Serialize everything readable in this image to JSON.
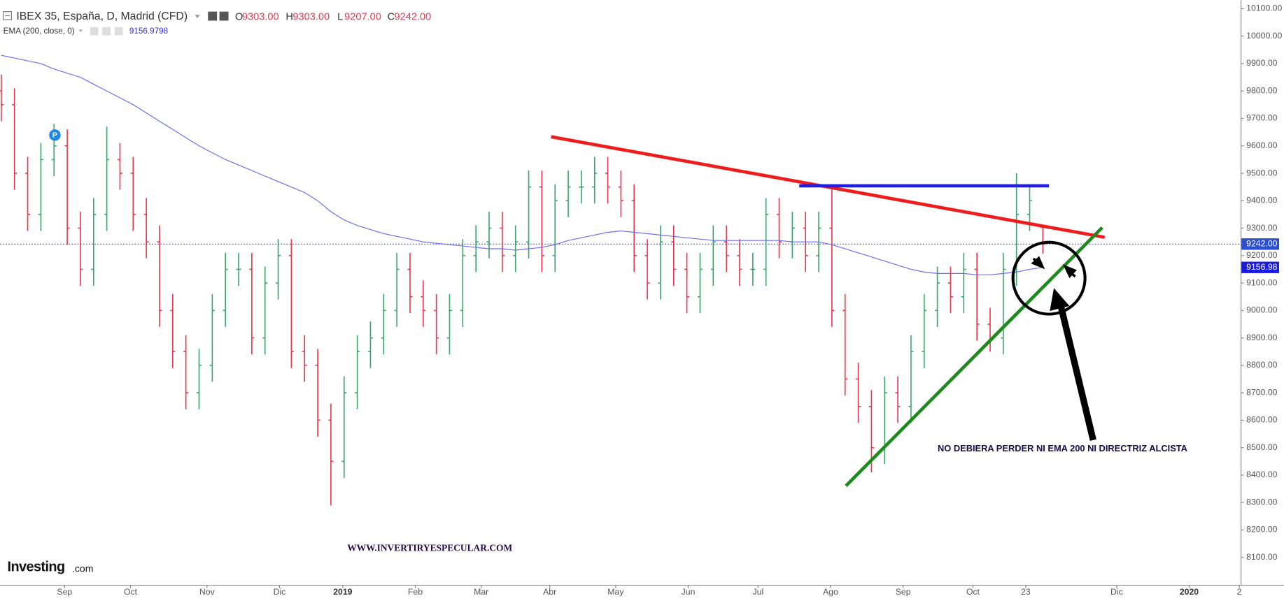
{
  "chart_data": {
    "type": "ohlc",
    "title": "IBEX 35, España, D, Madrid (CFD)",
    "x": [
      0,
      1,
      2,
      3,
      4,
      5,
      6,
      7,
      8,
      9,
      10,
      11,
      12,
      13,
      14,
      15,
      16,
      17,
      18,
      19,
      20,
      21,
      22,
      23,
      24,
      25,
      26,
      27,
      28,
      29,
      30,
      31,
      32,
      33,
      34,
      35,
      36,
      37,
      38,
      39,
      40,
      41,
      42,
      43,
      44,
      45,
      46,
      47,
      48,
      49,
      50,
      51,
      52,
      53,
      54,
      55,
      56,
      57,
      58,
      59,
      60,
      61,
      62,
      63,
      64,
      65,
      66,
      67,
      68,
      69,
      70,
      71,
      72,
      73,
      74,
      75,
      76,
      77,
      78,
      79
    ],
    "series": [
      {
        "name": "IBEX 35",
        "up_color": "#3aa86b",
        "down_color": "#e8384f",
        "open": [
          9800,
          9750,
          9500,
          9350,
          9550,
          9600,
          9300,
          9150,
          9350,
          9550,
          9500,
          9350,
          9250,
          9000,
          8850,
          8700,
          8800,
          9000,
          9150,
          9150,
          8900,
          9100,
          9200,
          8850,
          8800,
          8600,
          8450,
          8700,
          8850,
          8900,
          9000,
          9150,
          9050,
          9000,
          8900,
          9000,
          9200,
          9250,
          9300,
          9200,
          9250,
          9450,
          9200,
          9400,
          9450,
          9450,
          9500,
          9450,
          9400,
          9200,
          9100,
          9250,
          9150,
          9050,
          9150,
          9250,
          9200,
          9150,
          9150,
          9350,
          9250,
          9300,
          9200,
          9300,
          9000,
          8750,
          8650,
          8500,
          8700,
          8650,
          8850,
          9000,
          9100,
          9050,
          9150,
          8950,
          8900,
          9150,
          9350,
          9303
        ],
        "high": [
          9860,
          9810,
          9560,
          9610,
          9680,
          9660,
          9360,
          9410,
          9670,
          9610,
          9560,
          9410,
          9310,
          9060,
          8910,
          8860,
          9060,
          9210,
          9210,
          9210,
          9160,
          9260,
          9260,
          8910,
          8860,
          8660,
          8760,
          8910,
          8960,
          9060,
          9210,
          9210,
          9110,
          9060,
          9060,
          9260,
          9310,
          9360,
          9360,
          9310,
          9510,
          9510,
          9460,
          9510,
          9510,
          9560,
          9560,
          9510,
          9460,
          9260,
          9310,
          9310,
          9210,
          9210,
          9310,
          9310,
          9260,
          9210,
          9410,
          9410,
          9360,
          9360,
          9360,
          9460,
          9060,
          8810,
          8710,
          8760,
          8760,
          8910,
          9060,
          9160,
          9160,
          9210,
          9210,
          9010,
          9210,
          9500,
          9460,
          9303
        ],
        "low": [
          9690,
          9440,
          9290,
          9290,
          9490,
          9240,
          9090,
          9090,
          9290,
          9440,
          9290,
          9190,
          8940,
          8790,
          8640,
          8640,
          8740,
          8940,
          9090,
          8840,
          8840,
          9040,
          8790,
          8740,
          8540,
          8290,
          8390,
          8640,
          8790,
          8840,
          8940,
          8990,
          8940,
          8840,
          8840,
          8940,
          9140,
          9190,
          9140,
          9140,
          9190,
          9140,
          9140,
          9340,
          9390,
          9390,
          9390,
          9340,
          9140,
          9040,
          9040,
          9090,
          8990,
          8990,
          9090,
          9140,
          9090,
          9090,
          9090,
          9190,
          9190,
          9140,
          9140,
          8940,
          8690,
          8590,
          8410,
          8440,
          8590,
          8590,
          8790,
          8940,
          8990,
          8990,
          8890,
          8850,
          8840,
          9090,
          9290,
          9207
        ],
        "close": [
          9750,
          9500,
          9350,
          9550,
          9600,
          9300,
          9150,
          9350,
          9550,
          9500,
          9350,
          9250,
          9000,
          8850,
          8700,
          8800,
          9000,
          9150,
          9150,
          8900,
          9100,
          9200,
          8850,
          8800,
          8600,
          8450,
          8700,
          8850,
          8900,
          9000,
          9150,
          9050,
          9000,
          8900,
          9000,
          9200,
          9250,
          9300,
          9200,
          9250,
          9450,
          9200,
          9400,
          9450,
          9450,
          9500,
          9450,
          9400,
          9200,
          9100,
          9250,
          9150,
          9050,
          9150,
          9250,
          9200,
          9150,
          9150,
          9350,
          9250,
          9300,
          9200,
          9300,
          9000,
          8750,
          8650,
          8500,
          8700,
          8650,
          8850,
          9000,
          9100,
          9050,
          9150,
          8950,
          8900,
          9150,
          9350,
          9400,
          9242
        ],
        "ohlc_prefixes": [
          "O",
          "H",
          "L",
          "C"
        ],
        "last_value_labels": [
          "9303.00",
          "9303.00",
          "9207.00",
          "9242.00"
        ],
        "axis_badge": "9242.00"
      },
      {
        "name": "EMA (200, close, 0)",
        "color": "#6b6ef2",
        "values": [
          9930,
          9920,
          9910,
          9900,
          9880,
          9865,
          9850,
          9825,
          9800,
          9775,
          9750,
          9720,
          9690,
          9660,
          9630,
          9600,
          9575,
          9550,
          9530,
          9510,
          9490,
          9470,
          9450,
          9430,
          9400,
          9360,
          9330,
          9310,
          9295,
          9280,
          9270,
          9260,
          9250,
          9245,
          9240,
          9235,
          9230,
          9225,
          9225,
          9220,
          9225,
          9230,
          9240,
          9255,
          9265,
          9275,
          9285,
          9290,
          9285,
          9280,
          9275,
          9270,
          9265,
          9260,
          9255,
          9255,
          9255,
          9255,
          9255,
          9255,
          9250,
          9250,
          9250,
          9240,
          9225,
          9210,
          9195,
          9180,
          9165,
          9150,
          9140,
          9135,
          9135,
          9135,
          9130,
          9130,
          9135,
          9140,
          9150,
          9156.9798
        ],
        "last_label": "9156.9798",
        "axis_badge": "9156.98"
      }
    ],
    "xlim": [
      -0.1,
      94
    ],
    "xticks": [
      {
        "value": 4.8,
        "label": "Sep"
      },
      {
        "value": 9.8,
        "label": "Oct"
      },
      {
        "value": 15.6,
        "label": "Nov"
      },
      {
        "value": 21.1,
        "label": "Dic"
      },
      {
        "value": 25.9,
        "label": "2019"
      },
      {
        "value": 31.4,
        "label": "Feb"
      },
      {
        "value": 36.4,
        "label": "Mar"
      },
      {
        "value": 41.6,
        "label": "Abr"
      },
      {
        "value": 46.6,
        "label": "May"
      },
      {
        "value": 52.1,
        "label": "Jun"
      },
      {
        "value": 57.4,
        "label": "Jul"
      },
      {
        "value": 62.9,
        "label": "Ago"
      },
      {
        "value": 68.4,
        "label": "Sep"
      },
      {
        "value": 73.7,
        "label": "Oct"
      },
      {
        "value": 77.7,
        "label": "23"
      },
      {
        "value": 84.6,
        "label": "Dic"
      },
      {
        "value": 90.1,
        "label": "2020"
      },
      {
        "value": 93.9,
        "label": "2"
      }
    ],
    "ylim": [
      8000,
      10131
    ],
    "yticks": [
      {
        "value": 8100,
        "label": "8100.00"
      },
      {
        "value": 8200,
        "label": "8200.00"
      },
      {
        "value": 8300,
        "label": "8300.00"
      },
      {
        "value": 8400,
        "label": "8400.00"
      },
      {
        "value": 8500,
        "label": "8500.00"
      },
      {
        "value": 8600,
        "label": "8600.00"
      },
      {
        "value": 8700,
        "label": "8700.00"
      },
      {
        "value": 8800,
        "label": "8800.00"
      },
      {
        "value": 8900,
        "label": "8900.00"
      },
      {
        "value": 9000,
        "label": "9000.00"
      },
      {
        "value": 9100,
        "label": "9100.00"
      },
      {
        "value": 9200,
        "label": "9200.00"
      },
      {
        "value": 9300,
        "label": "9300.00"
      },
      {
        "value": 9400,
        "label": "9400.00"
      },
      {
        "value": 9500,
        "label": "9500.00"
      },
      {
        "value": 9600,
        "label": "9600.00"
      },
      {
        "value": 9700,
        "label": "9700.00"
      },
      {
        "value": 9800,
        "label": "9800.00"
      },
      {
        "value": 9900,
        "label": "9900.00"
      },
      {
        "value": 10000,
        "label": "10000.00"
      },
      {
        "value": 10100,
        "label": "10100.00"
      }
    ],
    "grid": false,
    "annotations": [
      "NO DEBIERA PERDER NI EMA 200 NI DIRECTRIZ ALCISTA",
      "WWW.INVERTIRYESPECULAR.COM"
    ],
    "marker": "P"
  },
  "watermark": {
    "main": "Investing",
    "suffix": ".com"
  }
}
